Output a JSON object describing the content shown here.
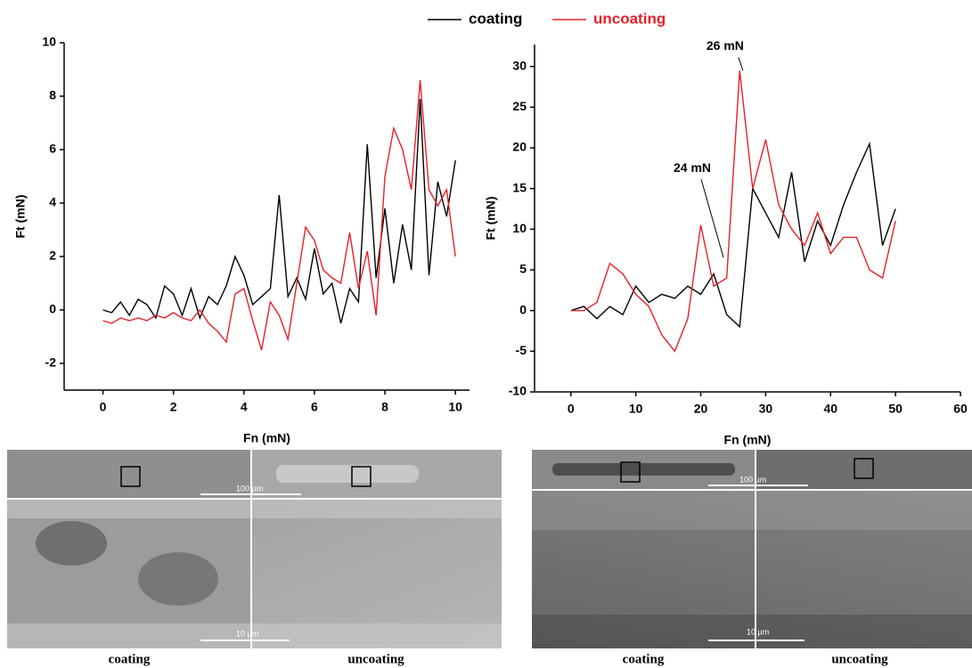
{
  "chart_data": [
    {
      "type": "line",
      "xlabel": "Fn (mN)",
      "ylabel": "Ft (mN)",
      "xlim": [
        -1.1,
        10.4
      ],
      "ylim": [
        -3,
        10
      ],
      "xticks": [
        0,
        2,
        4,
        6,
        8,
        10
      ],
      "yticks": [
        -2,
        0,
        2,
        4,
        6,
        8,
        10
      ],
      "x": [
        0,
        0.25,
        0.5,
        0.75,
        1,
        1.25,
        1.5,
        1.75,
        2,
        2.25,
        2.5,
        2.75,
        3,
        3.25,
        3.5,
        3.75,
        4,
        4.25,
        4.5,
        4.75,
        5,
        5.25,
        5.5,
        5.75,
        6,
        6.25,
        6.5,
        6.75,
        7,
        7.25,
        7.5,
        7.75,
        8,
        8.25,
        8.5,
        8.75,
        9,
        9.25,
        9.5,
        9.75,
        10
      ],
      "series": [
        {
          "name": "coating",
          "color": "#000000",
          "values": [
            0.0,
            -0.1,
            0.3,
            -0.2,
            0.4,
            0.2,
            -0.3,
            0.9,
            0.6,
            -0.2,
            0.8,
            -0.3,
            0.5,
            0.2,
            0.9,
            2.0,
            1.3,
            0.2,
            0.5,
            0.8,
            4.3,
            0.5,
            1.2,
            0.4,
            2.3,
            0.6,
            1.0,
            -0.5,
            0.8,
            0.3,
            6.2,
            1.2,
            3.8,
            1.0,
            3.2,
            1.5,
            7.9,
            1.3,
            4.8,
            3.5,
            5.6
          ]
        },
        {
          "name": "uncoating",
          "color": "#e8202a",
          "values": [
            -0.4,
            -0.5,
            -0.3,
            -0.4,
            -0.3,
            -0.4,
            -0.2,
            -0.3,
            -0.1,
            -0.3,
            -0.4,
            0.0,
            -0.5,
            -0.8,
            -1.2,
            0.6,
            0.8,
            -0.4,
            -1.5,
            0.3,
            -0.2,
            -1.1,
            1.0,
            3.1,
            2.6,
            1.5,
            1.2,
            1.0,
            2.9,
            0.8,
            2.2,
            -0.2,
            5.0,
            6.8,
            6.0,
            4.5,
            8.6,
            4.5,
            3.9,
            4.5,
            2.0
          ]
        }
      ]
    },
    {
      "type": "line",
      "xlabel": "Fn (mN)",
      "ylabel": "Ft (mN)",
      "xlim": [
        -5.6,
        60
      ],
      "ylim": [
        -10,
        32.7
      ],
      "xticks": [
        0,
        10,
        20,
        30,
        40,
        50,
        60
      ],
      "yticks": [
        -10,
        -5,
        0,
        5,
        10,
        15,
        20,
        25,
        30
      ],
      "x": [
        0,
        2,
        4,
        6,
        8,
        10,
        12,
        14,
        16,
        18,
        20,
        22,
        24,
        26,
        28,
        30,
        32,
        34,
        36,
        38,
        40,
        42,
        44,
        46,
        48,
        50
      ],
      "series": [
        {
          "color": "#000000",
          "values": [
            0,
            0.5,
            -1,
            0.5,
            -0.5,
            3,
            1,
            2,
            1.5,
            3,
            2,
            4.5,
            -0.5,
            -2,
            15,
            12,
            9,
            17,
            6,
            11,
            8,
            13,
            17,
            20.5,
            8,
            12.5
          ]
        },
        {
          "color": "#e8202a",
          "values": [
            0,
            0,
            1,
            5.8,
            4.5,
            2,
            0.5,
            -3,
            -5,
            -1,
            10.5,
            3,
            4,
            29.5,
            15,
            21,
            13,
            10,
            8,
            12,
            7,
            9,
            9,
            5,
            4,
            11
          ]
        }
      ],
      "annotations": [
        {
          "text": "26 mN",
          "x": 26.5,
          "y": 29.5
        },
        {
          "text": "24 mN",
          "x": 23.5,
          "y": 6.5
        }
      ]
    }
  ],
  "figures": [
    {
      "top_scale": "100 μm",
      "bottom_scale": "10 μm",
      "captions": [
        "coating",
        "uncoating"
      ]
    },
    {
      "top_scale": "100 μm",
      "bottom_scale": "10 μm",
      "captions": [
        "coating",
        "uncoating"
      ]
    }
  ]
}
